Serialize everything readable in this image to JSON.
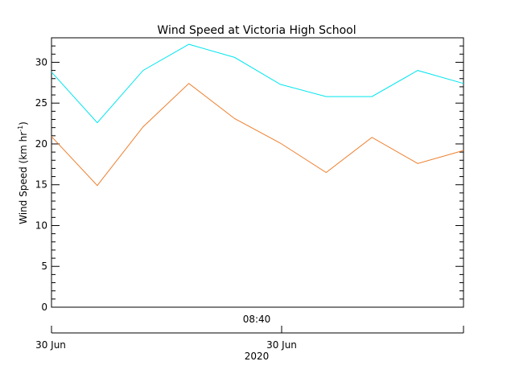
{
  "colors": {
    "background": "#ffffff",
    "axes": "#000000",
    "gust_series": "#00e5ee",
    "mean_series": "#ee7f2d"
  },
  "chart_data": {
    "type": "line",
    "title": "Wind Speed at Victoria High School",
    "ylabel_main": "Wind Speed (km hr",
    "ylabel_sup": "-1",
    "ylabel_close": ")",
    "ylim": [
      0,
      33
    ],
    "yticks": [
      0,
      5,
      10,
      15,
      20,
      25,
      30
    ],
    "grid": false,
    "legend": "none",
    "x_time_top_label": "08:40",
    "x_date_labels": [
      "30 Jun",
      "30 Jun"
    ],
    "x_year_label": "2020",
    "series": [
      {
        "color": "#00e5ee",
        "values": [
          28.8,
          22.6,
          29.0,
          32.2,
          30.6,
          27.3,
          25.8,
          25.8,
          29.0,
          27.4
        ]
      },
      {
        "color": "#ee7f2d",
        "values": [
          20.9,
          14.9,
          22.1,
          27.4,
          23.1,
          20.1,
          16.5,
          20.8,
          17.6,
          19.2
        ]
      }
    ]
  }
}
